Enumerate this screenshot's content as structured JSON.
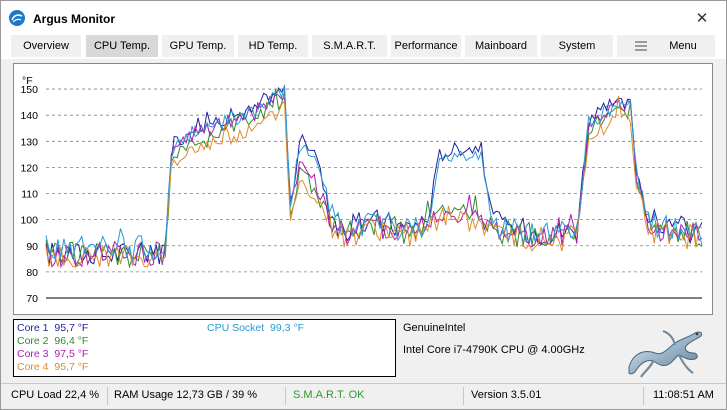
{
  "window": {
    "title": "Argus Monitor",
    "close_glyph": "✕"
  },
  "tabs": [
    {
      "label": "Overview",
      "active": false
    },
    {
      "label": "CPU Temp.",
      "active": true
    },
    {
      "label": "GPU Temp.",
      "active": false
    },
    {
      "label": "HD Temp.",
      "active": false
    },
    {
      "label": "S.M.A.R.T.",
      "active": false
    },
    {
      "label": "Performance",
      "active": false
    },
    {
      "label": "Mainboard",
      "active": false
    },
    {
      "label": "System",
      "active": false
    },
    {
      "label": "Menu",
      "active": false,
      "icon": "hamburger-icon"
    }
  ],
  "chart_data": {
    "type": "line",
    "ylabel": "°F",
    "ylim": [
      70,
      155
    ],
    "yticks": [
      70,
      80,
      90,
      100,
      110,
      120,
      130,
      140,
      150
    ],
    "grid": "dashed horizontal",
    "x_points": 221,
    "series": [
      {
        "name": "Core 1",
        "color": "#1f1fa0",
        "anchors": [
          [
            0,
            87
          ],
          [
            35,
            87
          ],
          [
            40,
            89
          ],
          [
            42,
            128
          ],
          [
            50,
            136
          ],
          [
            60,
            139
          ],
          [
            70,
            142
          ],
          [
            76,
            148
          ],
          [
            80,
            150
          ],
          [
            82,
            105
          ],
          [
            85,
            130
          ],
          [
            90,
            128
          ],
          [
            95,
            103
          ],
          [
            100,
            96
          ],
          [
            110,
            100
          ],
          [
            120,
            97
          ],
          [
            128,
            100
          ],
          [
            132,
            125
          ],
          [
            140,
            128
          ],
          [
            146,
            127
          ],
          [
            150,
            99
          ],
          [
            160,
            96
          ],
          [
            170,
            95
          ],
          [
            178,
            96
          ],
          [
            182,
            138
          ],
          [
            190,
            144
          ],
          [
            196,
            144
          ],
          [
            198,
            120
          ],
          [
            202,
            100
          ],
          [
            212,
            96
          ],
          [
            220,
            95
          ]
        ]
      },
      {
        "name": "Core 2",
        "color": "#2e8b2e",
        "anchors": [
          [
            0,
            88
          ],
          [
            35,
            86
          ],
          [
            40,
            87
          ],
          [
            42,
            122
          ],
          [
            50,
            131
          ],
          [
            60,
            135
          ],
          [
            70,
            139
          ],
          [
            76,
            144
          ],
          [
            80,
            146
          ],
          [
            82,
            103
          ],
          [
            85,
            118
          ],
          [
            90,
            112
          ],
          [
            95,
            101
          ],
          [
            100,
            95
          ],
          [
            110,
            99
          ],
          [
            120,
            95
          ],
          [
            128,
            98
          ],
          [
            132,
            104
          ],
          [
            140,
            103
          ],
          [
            146,
            103
          ],
          [
            150,
            96
          ],
          [
            160,
            94
          ],
          [
            170,
            94
          ],
          [
            178,
            94
          ],
          [
            182,
            134
          ],
          [
            190,
            141
          ],
          [
            196,
            142
          ],
          [
            198,
            116
          ],
          [
            202,
            99
          ],
          [
            212,
            96
          ],
          [
            220,
            93
          ]
        ]
      },
      {
        "name": "Core 3",
        "color": "#b01cb0",
        "anchors": [
          [
            0,
            86
          ],
          [
            35,
            87
          ],
          [
            40,
            88
          ],
          [
            42,
            125
          ],
          [
            50,
            133
          ],
          [
            60,
            137
          ],
          [
            70,
            141
          ],
          [
            76,
            146
          ],
          [
            80,
            148
          ],
          [
            82,
            104
          ],
          [
            85,
            122
          ],
          [
            90,
            115
          ],
          [
            95,
            100
          ],
          [
            100,
            94
          ],
          [
            110,
            98
          ],
          [
            120,
            96
          ],
          [
            128,
            97
          ],
          [
            132,
            102
          ],
          [
            140,
            101
          ],
          [
            146,
            101
          ],
          [
            150,
            96
          ],
          [
            160,
            95
          ],
          [
            170,
            93
          ],
          [
            178,
            94
          ],
          [
            182,
            136
          ],
          [
            190,
            143
          ],
          [
            196,
            144
          ],
          [
            198,
            117
          ],
          [
            202,
            97
          ],
          [
            212,
            95
          ],
          [
            220,
            94
          ]
        ]
      },
      {
        "name": "Core 4",
        "color": "#e08a2a",
        "anchors": [
          [
            0,
            85
          ],
          [
            35,
            85
          ],
          [
            40,
            86
          ],
          [
            42,
            120
          ],
          [
            50,
            127
          ],
          [
            60,
            131
          ],
          [
            70,
            135
          ],
          [
            76,
            140
          ],
          [
            80,
            143
          ],
          [
            82,
            101
          ],
          [
            85,
            114
          ],
          [
            90,
            110
          ],
          [
            95,
            99
          ],
          [
            100,
            93
          ],
          [
            110,
            97
          ],
          [
            120,
            94
          ],
          [
            128,
            96
          ],
          [
            132,
            100
          ],
          [
            140,
            99
          ],
          [
            146,
            99
          ],
          [
            150,
            95
          ],
          [
            160,
            93
          ],
          [
            170,
            92
          ],
          [
            178,
            93
          ],
          [
            182,
            130
          ],
          [
            190,
            137
          ],
          [
            196,
            139
          ],
          [
            198,
            113
          ],
          [
            202,
            96
          ],
          [
            212,
            94
          ],
          [
            220,
            93
          ]
        ]
      },
      {
        "name": "CPU Socket",
        "color": "#2a9ad0",
        "anchors": [
          [
            0,
            89
          ],
          [
            35,
            89
          ],
          [
            40,
            90
          ],
          [
            42,
            126
          ],
          [
            50,
            134
          ],
          [
            60,
            138
          ],
          [
            70,
            141
          ],
          [
            76,
            146
          ],
          [
            80,
            149
          ],
          [
            82,
            104
          ],
          [
            85,
            127
          ],
          [
            90,
            124
          ],
          [
            95,
            102
          ],
          [
            100,
            96
          ],
          [
            110,
            99
          ],
          [
            120,
            96
          ],
          [
            128,
            99
          ],
          [
            132,
            122
          ],
          [
            140,
            125
          ],
          [
            146,
            124
          ],
          [
            150,
            98
          ],
          [
            160,
            96
          ],
          [
            170,
            94
          ],
          [
            178,
            95
          ],
          [
            182,
            137
          ],
          [
            190,
            143
          ],
          [
            196,
            143
          ],
          [
            198,
            118
          ],
          [
            202,
            99
          ],
          [
            212,
            96
          ],
          [
            220,
            95
          ]
        ]
      }
    ]
  },
  "legend": [
    {
      "label": "Core 1",
      "value": "95,7 °F",
      "color": "#1f1fa0"
    },
    {
      "label": "Core 2",
      "value": "96,4 °F",
      "color": "#2e8b2e"
    },
    {
      "label": "Core 3",
      "value": "97,5 °F",
      "color": "#b01cb0"
    },
    {
      "label": "Core 4",
      "value": "95,7 °F",
      "color": "#e08a2a"
    },
    {
      "label": "CPU Socket",
      "value": "99,3 °F",
      "color": "#2a9ad0"
    }
  ],
  "cpu": {
    "vendor": "GenuineIntel",
    "model": "Intel Core i7-4790K CPU @ 4.00GHz"
  },
  "status": {
    "cpu_load": "CPU Load 22,4 %",
    "ram_usage": "RAM Usage 12,73 GB / 39 %",
    "smart": "S.M.A.R.T. OK",
    "smart_color": "#2e9a2e",
    "version": "Version 3.5.01",
    "time": "11:08:51 AM"
  }
}
